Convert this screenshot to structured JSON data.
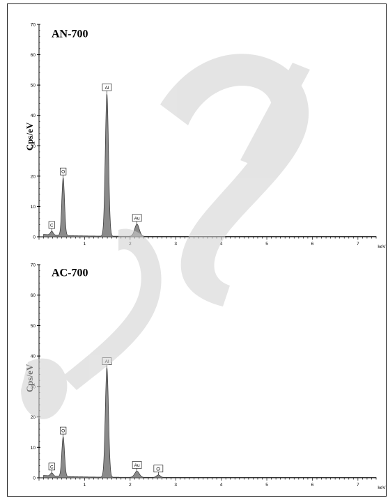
{
  "chart_data": [
    {
      "type": "line",
      "title": "AN-700",
      "ylabel": "Cps/eV",
      "xunit": "keV",
      "xlim": [
        0,
        7.4
      ],
      "ylim": [
        0,
        70
      ],
      "x_ticks": [
        "1",
        "2",
        "3",
        "4",
        "5",
        "6",
        "7"
      ],
      "y_ticks": [
        "0",
        "10",
        "20",
        "30",
        "40",
        "50",
        "60",
        "70"
      ],
      "peaks": [
        {
          "element": "C",
          "energy": 0.28,
          "height": 1.2
        },
        {
          "element": "O",
          "energy": 0.53,
          "height": 19
        },
        {
          "element": "Al",
          "energy": 1.49,
          "height": 47
        },
        {
          "element": "Au",
          "energy": 2.15,
          "height": 4
        }
      ]
    },
    {
      "type": "line",
      "title": "AC-700",
      "ylabel": "Cps/eV",
      "xunit": "keV",
      "xlim": [
        0,
        7.4
      ],
      "ylim": [
        0,
        70
      ],
      "x_ticks": [
        "1",
        "2",
        "3",
        "4",
        "5",
        "6",
        "7"
      ],
      "y_ticks": [
        "0",
        "10",
        "20",
        "30",
        "40",
        "50",
        "60",
        "70"
      ],
      "peaks": [
        {
          "element": "C",
          "energy": 0.28,
          "height": 1.0
        },
        {
          "element": "O",
          "energy": 0.53,
          "height": 13
        },
        {
          "element": "Al",
          "energy": 1.49,
          "height": 36
        },
        {
          "element": "Au",
          "energy": 2.15,
          "height": 2
        },
        {
          "element": "Cl",
          "energy": 2.62,
          "height": 0.8
        }
      ]
    }
  ],
  "colors": {
    "fill": "#8a8a8a",
    "line": "#333333",
    "watermark": "#d9d9d9"
  }
}
